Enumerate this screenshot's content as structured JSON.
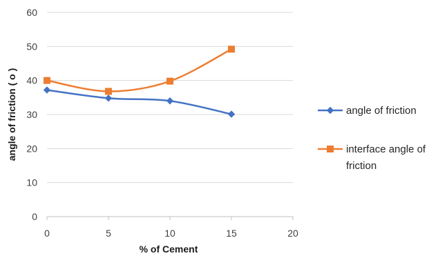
{
  "chart_data": {
    "type": "line",
    "title": "",
    "xlabel": "% of Cement",
    "ylabel": "angle of friction ( o )",
    "xlim": [
      0,
      20
    ],
    "ylim": [
      0,
      60
    ],
    "x_ticks": [
      "0",
      "5",
      "10",
      "15",
      "20"
    ],
    "y_ticks": [
      "0",
      "10",
      "20",
      "30",
      "40",
      "50",
      "60"
    ],
    "grid": "horizontal",
    "legend_position": "right",
    "smooth": true,
    "series": [
      {
        "name": "angle of friction",
        "color": "#4472C4",
        "marker": "diamond",
        "x": [
          0,
          5,
          10,
          15
        ],
        "y": [
          37.2,
          34.8,
          34.0,
          30.1
        ]
      },
      {
        "name": "interface angle of friction",
        "name_lines": [
          "interface angle of",
          "friction"
        ],
        "color": "#ED7D31",
        "marker": "square",
        "x": [
          0,
          5,
          10,
          15
        ],
        "y": [
          40.0,
          36.8,
          39.8,
          49.2
        ]
      }
    ]
  }
}
